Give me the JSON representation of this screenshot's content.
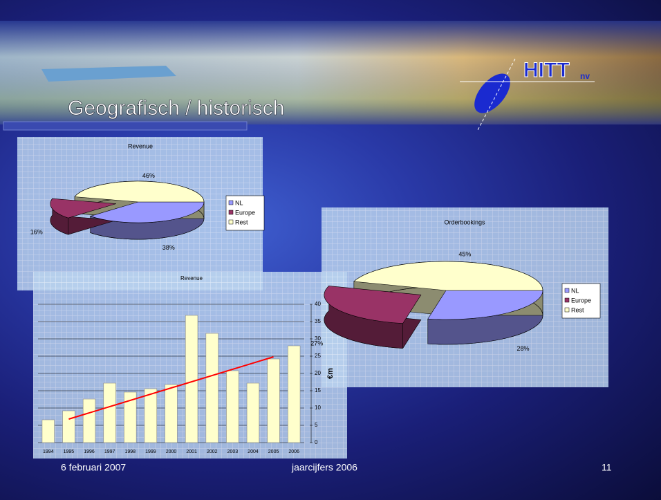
{
  "slide": {
    "title": "Geografisch / historisch",
    "logo": "HITT",
    "logo_suffix": "nv",
    "footer_date": "6 februari 2007",
    "footer_center": "jaarcijfers 2006",
    "page_number": "11"
  },
  "chart_data": [
    {
      "type": "pie",
      "title": "Revenue",
      "categories": [
        "NL",
        "Europe",
        "Rest"
      ],
      "values": [
        38,
        16,
        46
      ],
      "value_labels": [
        "38%",
        "16%",
        "46%"
      ],
      "colors": [
        "#9999ff",
        "#993366",
        "#ffffcc"
      ],
      "legend": "right"
    },
    {
      "type": "pie",
      "title": "Orderbookings",
      "categories": [
        "NL",
        "Europe",
        "Rest"
      ],
      "values": [
        28,
        27,
        45
      ],
      "value_labels": [
        "28%",
        "27%",
        "45%"
      ],
      "colors": [
        "#9999ff",
        "#993366",
        "#ffffcc"
      ],
      "legend": "right"
    },
    {
      "type": "bar",
      "title": "Revenue",
      "ylabel": "€m",
      "categories": [
        "1994",
        "1995",
        "1996",
        "1997",
        "1998",
        "1999",
        "2000",
        "2001",
        "2002",
        "2003",
        "2004",
        "2005",
        "2006"
      ],
      "values": [
        6.6,
        9.2,
        12.6,
        17.2,
        14.6,
        15.6,
        16.8,
        36.8,
        31.6,
        20.8,
        17.2,
        24.2,
        28
      ],
      "color": "#ffffcc",
      "ylim": [
        0,
        40
      ],
      "yticks": [
        0,
        5,
        10,
        15,
        20,
        25,
        30,
        35,
        40
      ],
      "grid": true,
      "trendline": {
        "categories": [
          "1995",
          "2005"
        ],
        "values": [
          6.8,
          24.8
        ],
        "color": "#ff0000"
      }
    }
  ]
}
